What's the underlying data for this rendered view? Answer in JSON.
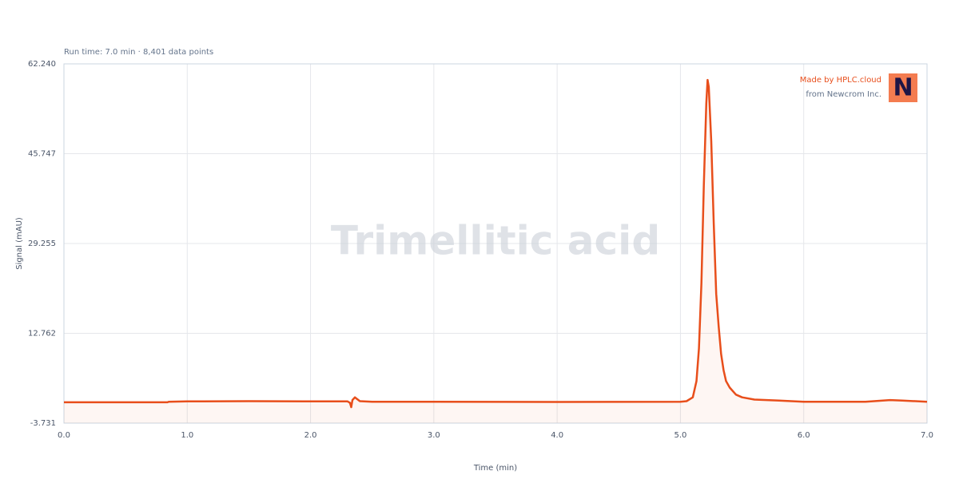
{
  "chart_data": {
    "type": "line",
    "subtitle": "Run time: 7.0 min · 8,401 data points",
    "watermark": "Trimellitic acid",
    "credit": "Made by HPLC.cloud",
    "credit_from": "from Newcrom Inc.",
    "logo": "N",
    "x_label": "Time (min)",
    "y_label": "Signal (mAU)",
    "x": [
      0,
      0.84,
      0.85,
      1.0,
      1.5,
      2.0,
      2.3,
      2.32,
      2.33,
      2.34,
      2.36,
      2.4,
      2.5,
      3.0,
      4.0,
      5.0,
      5.05,
      5.1,
      5.13,
      5.15,
      5.17,
      5.19,
      5.21,
      5.22,
      5.23,
      5.25,
      5.27,
      5.29,
      5.31,
      5.33,
      5.35,
      5.37,
      5.4,
      5.45,
      5.5,
      5.6,
      5.7,
      5.8,
      5.9,
      6.0,
      6.5,
      6.7,
      6.8,
      7.0
    ],
    "series": [
      {
        "name": "Signal",
        "color": "#e84e1b",
        "values": [
          0.1,
          0.1,
          0.2,
          0.25,
          0.3,
          0.25,
          0.25,
          0,
          -0.8,
          0.5,
          1.0,
          0.3,
          0.2,
          0.2,
          0.15,
          0.2,
          0.3,
          1.0,
          4,
          10,
          22,
          40,
          55,
          59.3,
          58,
          48,
          33,
          20,
          14,
          9,
          6,
          4,
          2.8,
          1.5,
          1.0,
          0.6,
          0.5,
          0.4,
          0.3,
          0.2,
          0.2,
          0.5,
          0.4,
          0.2
        ]
      }
    ],
    "xlim": [
      0,
      7
    ],
    "xticks": [
      {
        "value": 0,
        "label": "0.0"
      },
      {
        "value": 1,
        "label": "1.0"
      },
      {
        "value": 2,
        "label": "2.0"
      },
      {
        "value": 3,
        "label": "3.0"
      },
      {
        "value": 4,
        "label": "4.0"
      },
      {
        "value": 5,
        "label": "5.0"
      },
      {
        "value": 6,
        "label": "6.0"
      },
      {
        "value": 7,
        "label": "7.0"
      }
    ],
    "ylim": [
      -3.731,
      62.24
    ],
    "yticks": [
      -3.731,
      12.762,
      29.255,
      45.747,
      {
        "value": 62.24,
        "label": "62.240"
      }
    ],
    "grid": true
  }
}
